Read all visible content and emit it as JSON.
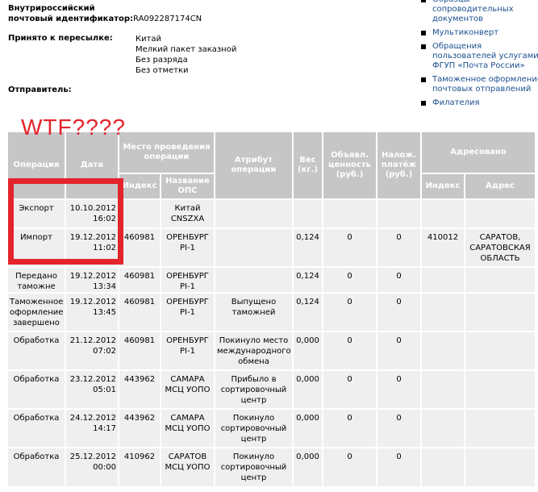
{
  "info": {
    "id_label": "Внутрироссийский почтовый идентификатор:",
    "id_label_line1": "Внутрироссийский",
    "id_label_line2": "почтовый идентификатор:",
    "id_value": "RA092287174CN",
    "accepted_label": "Принято к пересылке:",
    "accepted_values": [
      "Китай",
      "Мелкий пакет заказной",
      "Без разряда",
      "Без отметки"
    ],
    "sender_label": "Отправитель:"
  },
  "links": [
    "Образцы сопроводительных документов",
    "Мультиконверт",
    "Обращения пользователей услугами ФГУП «Почта России»",
    "Таможенное оформление почтовых отправлений",
    "Филателия"
  ],
  "annotation": {
    "text": "WTF????",
    "color": "#e3242b"
  },
  "table": {
    "headers": {
      "operation": "Операция",
      "date": "Дата",
      "place": "Место проведения операции",
      "place_index": "Индекс",
      "place_name": "Название ОПС",
      "attribute": "Атрибут операции",
      "weight": "Вес (кг.)",
      "declared": "Объявл. ценность (руб.)",
      "cod": "Налож. платёж (руб.)",
      "addressed": "Адресовано",
      "addr_index": "Индекс",
      "addr_address": "Адрес"
    },
    "rows": [
      [
        "Экспорт",
        "10.10.2012 16:02",
        "",
        "Китай CNSZXA",
        "",
        "",
        "",
        "",
        "",
        ""
      ],
      [
        "Импорт",
        "19.12.2012 11:02",
        "460981",
        "ОРЕНБУРГ PI-1",
        "",
        "0,124",
        "0",
        "0",
        "410012",
        "САРАТОВ, САРАТОВСКАЯ ОБЛАСТЬ"
      ],
      [
        "Передано таможне",
        "19.12.2012 13:34",
        "460981",
        "ОРЕНБУРГ PI-1",
        "",
        "0,124",
        "0",
        "0",
        "",
        ""
      ],
      [
        "Таможенное оформление завершено",
        "19.12.2012 13:45",
        "460981",
        "ОРЕНБУРГ PI-1",
        "Выпущено таможней",
        "0,124",
        "0",
        "0",
        "",
        ""
      ],
      [
        "Обработка",
        "21.12.2012 07:02",
        "460981",
        "ОРЕНБУРГ PI-1",
        "Покинуло место международного обмена",
        "0,000",
        "0",
        "0",
        "",
        ""
      ],
      [
        "Обработка",
        "23.12.2012 05:01",
        "443962",
        "САМАРА МСЦ УОПО",
        "Прибыло в сортировочный центр",
        "0,000",
        "0",
        "0",
        "",
        ""
      ],
      [
        "Обработка",
        "24.12.2012 14:17",
        "443962",
        "САМАРА МСЦ УОПО",
        "Покинуло сортировочный центр",
        "0,000",
        "0",
        "0",
        "",
        ""
      ],
      [
        "Обработка",
        "25.12.2012 00:00",
        "410962",
        "САРАТОВ МСЦ УОПО",
        "Покинуло сортировочный центр",
        "0,000",
        "0",
        "0",
        "",
        ""
      ]
    ]
  }
}
